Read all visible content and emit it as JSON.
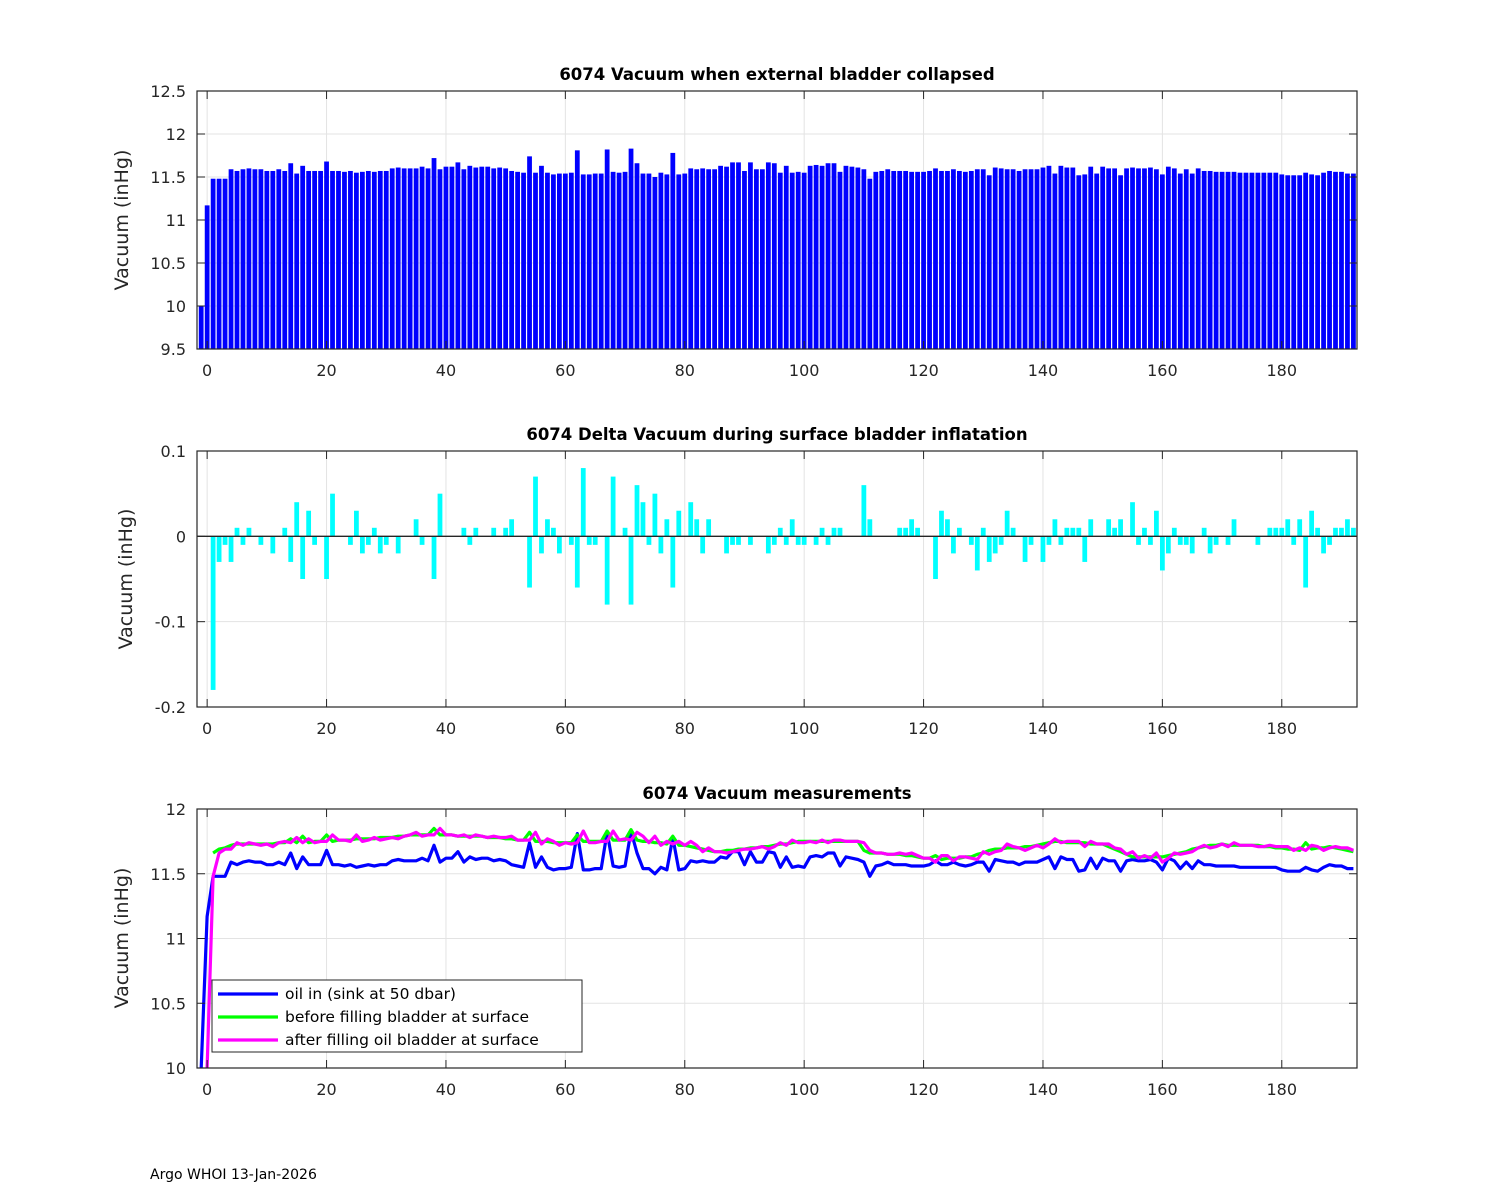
{
  "footer": "Argo WHOI 13-Jan-2026",
  "chart_data": [
    {
      "type": "bar",
      "title": "6074 Vacuum when external bladder collapsed",
      "xlabel": "",
      "ylabel": "Vacuum (inHg)",
      "x_range": [
        -1,
        192
      ],
      "xlim": [
        -1.7,
        192.6
      ],
      "ylim": [
        9.5,
        12.5
      ],
      "xticks": [
        0,
        20,
        40,
        60,
        80,
        100,
        120,
        140,
        160,
        180
      ],
      "xtick_labels": [
        "0",
        "20",
        "40",
        "60",
        "80",
        "100",
        "120",
        "140",
        "160",
        "180"
      ],
      "yticks": [
        9.5,
        10,
        10.5,
        11,
        11.5,
        12,
        12.5
      ],
      "ytick_labels": [
        "9.5",
        "10",
        "10.5",
        "11",
        "11.5",
        "12",
        "12.5"
      ],
      "grid": true,
      "color": "#0000ff",
      "values": [
        10.0,
        11.17,
        11.48,
        11.48,
        11.48,
        11.59,
        11.57,
        11.59,
        11.6,
        11.59,
        11.59,
        11.57,
        11.57,
        11.59,
        11.57,
        11.66,
        11.54,
        11.63,
        11.57,
        11.57,
        11.57,
        11.68,
        11.57,
        11.57,
        11.56,
        11.57,
        11.55,
        11.56,
        11.57,
        11.56,
        11.57,
        11.57,
        11.6,
        11.61,
        11.6,
        11.6,
        11.6,
        11.62,
        11.6,
        11.72,
        11.59,
        11.62,
        11.62,
        11.67,
        11.59,
        11.63,
        11.61,
        11.62,
        11.62,
        11.6,
        11.61,
        11.6,
        11.57,
        11.56,
        11.55,
        11.74,
        11.55,
        11.63,
        11.55,
        11.53,
        11.54,
        11.54,
        11.55,
        11.81,
        11.53,
        11.53,
        11.54,
        11.54,
        11.82,
        11.56,
        11.55,
        11.56,
        11.83,
        11.66,
        11.54,
        11.54,
        11.5,
        11.55,
        11.53,
        11.78,
        11.53,
        11.54,
        11.6,
        11.59,
        11.6,
        11.59,
        11.59,
        11.63,
        11.62,
        11.67,
        11.67,
        11.57,
        11.67,
        11.59,
        11.59,
        11.67,
        11.66,
        11.55,
        11.63,
        11.55,
        11.56,
        11.55,
        11.63,
        11.64,
        11.63,
        11.66,
        11.66,
        11.56,
        11.63,
        11.62,
        11.61,
        11.59,
        11.48,
        11.56,
        11.57,
        11.59,
        11.57,
        11.57,
        11.57,
        11.56,
        11.56,
        11.56,
        11.57,
        11.6,
        11.57,
        11.57,
        11.59,
        11.57,
        11.56,
        11.57,
        11.59,
        11.59,
        11.52,
        11.61,
        11.6,
        11.59,
        11.59,
        11.57,
        11.59,
        11.59,
        11.59,
        11.61,
        11.63,
        11.54,
        11.63,
        11.61,
        11.61,
        11.52,
        11.53,
        11.62,
        11.54,
        11.62,
        11.6,
        11.6,
        11.52,
        11.6,
        11.61,
        11.6,
        11.6,
        11.61,
        11.59,
        11.53,
        11.62,
        11.6,
        11.54,
        11.59,
        11.54,
        11.6,
        11.57,
        11.57,
        11.56,
        11.56,
        11.56,
        11.56,
        11.55,
        11.55,
        11.55,
        11.55,
        11.55,
        11.55,
        11.55,
        11.53,
        11.52,
        11.52,
        11.52,
        11.55,
        11.53,
        11.52,
        11.55,
        11.57,
        11.56,
        11.56,
        11.54,
        11.54
      ]
    },
    {
      "type": "bar",
      "title": "6074 Delta Vacuum during surface bladder inflatation",
      "xlabel": "",
      "ylabel": "Vacuum (inHg)",
      "x_range": [
        -1,
        192
      ],
      "xlim": [
        -1.7,
        192.6
      ],
      "ylim": [
        -0.2,
        0.1
      ],
      "xticks": [
        0,
        20,
        40,
        60,
        80,
        100,
        120,
        140,
        160,
        180
      ],
      "xtick_labels": [
        "0",
        "20",
        "40",
        "60",
        "80",
        "100",
        "120",
        "140",
        "160",
        "180"
      ],
      "yticks": [
        -0.2,
        -0.1,
        0,
        0.1
      ],
      "ytick_labels": [
        "-0.2",
        "-0.1",
        "0",
        "0.1"
      ],
      "grid": true,
      "color": "#00ffff",
      "values": [
        null,
        null,
        -0.18,
        -0.03,
        -0.01,
        -0.03,
        0.01,
        -0.01,
        0.01,
        0,
        -0.01,
        0,
        -0.02,
        0,
        0.01,
        -0.03,
        0.04,
        -0.05,
        0.03,
        -0.01,
        0,
        -0.05,
        0.05,
        0,
        0,
        -0.01,
        0.03,
        -0.02,
        -0.01,
        0.01,
        -0.02,
        -0.01,
        0,
        -0.02,
        0,
        0,
        0.02,
        -0.01,
        0,
        -0.05,
        0.05,
        0,
        0,
        0,
        0.01,
        -0.01,
        0.01,
        0,
        0,
        0.01,
        0,
        0.01,
        0.02,
        0,
        0,
        -0.06,
        0.07,
        -0.02,
        0.02,
        0.01,
        -0.02,
        0,
        -0.01,
        -0.06,
        0.08,
        -0.01,
        -0.01,
        0,
        -0.08,
        0.07,
        0,
        0.01,
        -0.08,
        0.06,
        0.04,
        -0.01,
        0.05,
        -0.02,
        0.02,
        -0.06,
        0.03,
        0,
        0.04,
        0.02,
        -0.02,
        0.02,
        0,
        0,
        -0.02,
        -0.01,
        -0.01,
        0,
        -0.01,
        0,
        0,
        -0.02,
        -0.01,
        0.01,
        -0.01,
        0.02,
        -0.01,
        -0.01,
        0,
        -0.01,
        0.01,
        -0.01,
        0.01,
        0.01,
        0,
        0,
        0,
        0.06,
        0.02,
        0,
        0,
        0,
        0,
        0.01,
        0.01,
        0.02,
        0.01,
        0,
        0,
        -0.05,
        0.03,
        0.02,
        -0.02,
        0.01,
        0,
        -0.01,
        -0.04,
        0.01,
        -0.03,
        -0.02,
        -0.01,
        0.03,
        0.01,
        0,
        -0.03,
        -0.01,
        0,
        -0.03,
        -0.01,
        0.02,
        -0.01,
        0.01,
        0.01,
        0.01,
        -0.03,
        0.02,
        0,
        0,
        0.02,
        0.01,
        0.02,
        0,
        0.04,
        -0.01,
        0.01,
        -0.01,
        0.03,
        -0.04,
        -0.02,
        0.01,
        -0.01,
        -0.01,
        -0.02,
        0,
        0.01,
        -0.02,
        -0.01,
        0,
        -0.01,
        0.02,
        0,
        0,
        0,
        -0.01,
        0,
        0.01,
        0.01,
        0.01,
        0.02,
        -0.01,
        0.02,
        -0.06,
        0.03,
        0.01,
        -0.02,
        -0.01,
        0.01,
        0.01,
        0.02,
        0.01
      ]
    },
    {
      "type": "line",
      "title": "6074 Vacuum measurements",
      "xlabel": "",
      "ylabel": "Vacuum (inHg)",
      "x_range": [
        -1,
        192
      ],
      "xlim": [
        -1.7,
        192.6
      ],
      "ylim": [
        10,
        12
      ],
      "xticks": [
        0,
        20,
        40,
        60,
        80,
        100,
        120,
        140,
        160,
        180
      ],
      "xtick_labels": [
        "0",
        "20",
        "40",
        "60",
        "80",
        "100",
        "120",
        "140",
        "160",
        "180"
      ],
      "yticks": [
        10,
        10.5,
        11,
        11.5,
        12
      ],
      "ytick_labels": [
        "10",
        "10.5",
        "11",
        "11.5",
        "12"
      ],
      "grid": true,
      "legend_position": "bottom-left",
      "series": [
        {
          "name": "oil in (sink at 50 dbar)",
          "color": "#0000ff",
          "values": [
            10.0,
            11.17,
            11.48,
            11.48,
            11.48,
            11.59,
            11.57,
            11.59,
            11.6,
            11.59,
            11.59,
            11.57,
            11.57,
            11.59,
            11.57,
            11.66,
            11.54,
            11.63,
            11.57,
            11.57,
            11.57,
            11.68,
            11.57,
            11.57,
            11.56,
            11.57,
            11.55,
            11.56,
            11.57,
            11.56,
            11.57,
            11.57,
            11.6,
            11.61,
            11.6,
            11.6,
            11.6,
            11.62,
            11.6,
            11.72,
            11.59,
            11.62,
            11.62,
            11.67,
            11.59,
            11.63,
            11.61,
            11.62,
            11.62,
            11.6,
            11.61,
            11.6,
            11.57,
            11.56,
            11.55,
            11.74,
            11.55,
            11.63,
            11.55,
            11.53,
            11.54,
            11.54,
            11.55,
            11.81,
            11.53,
            11.53,
            11.54,
            11.54,
            11.82,
            11.56,
            11.55,
            11.56,
            11.83,
            11.66,
            11.54,
            11.54,
            11.5,
            11.55,
            11.53,
            11.78,
            11.53,
            11.54,
            11.6,
            11.59,
            11.6,
            11.59,
            11.59,
            11.63,
            11.62,
            11.67,
            11.67,
            11.57,
            11.67,
            11.59,
            11.59,
            11.67,
            11.66,
            11.55,
            11.63,
            11.55,
            11.56,
            11.55,
            11.63,
            11.64,
            11.63,
            11.66,
            11.66,
            11.56,
            11.63,
            11.62,
            11.61,
            11.59,
            11.48,
            11.56,
            11.57,
            11.59,
            11.57,
            11.57,
            11.57,
            11.56,
            11.56,
            11.56,
            11.57,
            11.6,
            11.57,
            11.57,
            11.59,
            11.57,
            11.56,
            11.57,
            11.59,
            11.59,
            11.52,
            11.61,
            11.6,
            11.59,
            11.59,
            11.57,
            11.59,
            11.59,
            11.59,
            11.61,
            11.63,
            11.54,
            11.63,
            11.61,
            11.61,
            11.52,
            11.53,
            11.62,
            11.54,
            11.62,
            11.6,
            11.6,
            11.52,
            11.6,
            11.61,
            11.6,
            11.6,
            11.61,
            11.59,
            11.53,
            11.62,
            11.6,
            11.54,
            11.59,
            11.54,
            11.6,
            11.57,
            11.57,
            11.56,
            11.56,
            11.56,
            11.56,
            11.55,
            11.55,
            11.55,
            11.55,
            11.55,
            11.55,
            11.55,
            11.53,
            11.52,
            11.52,
            11.52,
            11.55,
            11.53,
            11.52,
            11.55,
            11.57,
            11.56,
            11.56,
            11.54,
            11.54
          ]
        },
        {
          "name": "before filling bladder at surface",
          "color": "#00ff00",
          "values": [
            null,
            null,
            11.66,
            11.69,
            11.7,
            11.72,
            11.73,
            11.73,
            11.73,
            11.73,
            11.73,
            11.73,
            11.73,
            11.74,
            11.74,
            11.77,
            11.74,
            11.79,
            11.74,
            11.75,
            11.75,
            11.8,
            11.75,
            11.76,
            11.76,
            11.76,
            11.77,
            11.77,
            11.77,
            11.77,
            11.78,
            11.78,
            11.78,
            11.79,
            11.79,
            11.8,
            11.8,
            11.8,
            11.8,
            11.85,
            11.8,
            11.8,
            11.8,
            11.79,
            11.79,
            11.79,
            11.79,
            11.79,
            11.78,
            11.78,
            11.78,
            11.77,
            11.77,
            11.76,
            11.76,
            11.82,
            11.75,
            11.75,
            11.75,
            11.74,
            11.74,
            11.74,
            11.74,
            11.8,
            11.75,
            11.75,
            11.75,
            11.75,
            11.83,
            11.76,
            11.76,
            11.76,
            11.84,
            11.76,
            11.75,
            11.75,
            11.74,
            11.74,
            11.73,
            11.79,
            11.72,
            11.72,
            11.71,
            11.7,
            11.69,
            11.68,
            11.67,
            11.67,
            11.68,
            11.68,
            11.69,
            11.69,
            11.7,
            11.7,
            11.71,
            11.71,
            11.72,
            11.73,
            11.73,
            11.74,
            11.75,
            11.75,
            11.75,
            11.75,
            11.75,
            11.75,
            11.75,
            11.75,
            11.75,
            11.75,
            11.75,
            11.68,
            11.66,
            11.66,
            11.66,
            11.65,
            11.65,
            11.65,
            11.64,
            11.64,
            11.63,
            11.62,
            11.62,
            11.64,
            11.61,
            11.62,
            11.62,
            11.62,
            11.63,
            11.63,
            11.65,
            11.66,
            11.68,
            11.69,
            11.69,
            11.7,
            11.7,
            11.7,
            11.71,
            11.71,
            11.72,
            11.73,
            11.74,
            11.75,
            11.75,
            11.74,
            11.74,
            11.74,
            11.74,
            11.73,
            11.73,
            11.73,
            11.71,
            11.69,
            11.67,
            11.65,
            11.63,
            11.63,
            11.63,
            11.63,
            11.63,
            11.63,
            11.64,
            11.65,
            11.66,
            11.67,
            11.69,
            11.7,
            11.71,
            11.72,
            11.72,
            11.73,
            11.72,
            11.72,
            11.72,
            11.72,
            11.72,
            11.72,
            11.71,
            11.71,
            11.7,
            11.7,
            11.69,
            11.69,
            11.68,
            11.74,
            11.69,
            11.7,
            11.7,
            11.71,
            11.7,
            11.69,
            11.68,
            11.67
          ]
        },
        {
          "name": "after filling oil bladder at surface",
          "color": "#ff00ff",
          "values": [
            null,
            10.0,
            11.48,
            11.66,
            11.69,
            11.69,
            11.74,
            11.72,
            11.74,
            11.73,
            11.72,
            11.73,
            11.71,
            11.74,
            11.75,
            11.74,
            11.78,
            11.74,
            11.77,
            11.74,
            11.75,
            11.75,
            11.8,
            11.76,
            11.76,
            11.75,
            11.8,
            11.75,
            11.76,
            11.78,
            11.76,
            11.77,
            11.78,
            11.77,
            11.79,
            11.8,
            11.82,
            11.79,
            11.8,
            11.8,
            11.85,
            11.8,
            11.8,
            11.79,
            11.8,
            11.78,
            11.8,
            11.79,
            11.78,
            11.79,
            11.78,
            11.78,
            11.79,
            11.76,
            11.76,
            11.76,
            11.82,
            11.73,
            11.77,
            11.75,
            11.72,
            11.74,
            11.73,
            11.74,
            11.83,
            11.74,
            11.74,
            11.75,
            11.75,
            11.83,
            11.76,
            11.77,
            11.76,
            11.82,
            11.79,
            11.74,
            11.79,
            11.72,
            11.75,
            11.73,
            11.75,
            11.72,
            11.75,
            11.72,
            11.67,
            11.7,
            11.67,
            11.67,
            11.66,
            11.67,
            11.68,
            11.69,
            11.69,
            11.7,
            11.71,
            11.69,
            11.71,
            11.74,
            11.72,
            11.76,
            11.74,
            11.74,
            11.75,
            11.74,
            11.76,
            11.74,
            11.76,
            11.76,
            11.75,
            11.75,
            11.75,
            11.74,
            11.68,
            11.66,
            11.66,
            11.65,
            11.65,
            11.66,
            11.65,
            11.66,
            11.64,
            11.62,
            11.62,
            11.59,
            11.64,
            11.64,
            11.6,
            11.63,
            11.63,
            11.62,
            11.61,
            11.67,
            11.65,
            11.67,
            11.68,
            11.73,
            11.71,
            11.7,
            11.68,
            11.7,
            11.72,
            11.7,
            11.73,
            11.77,
            11.74,
            11.75,
            11.75,
            11.75,
            11.71,
            11.75,
            11.73,
            11.73,
            11.73,
            11.7,
            11.69,
            11.65,
            11.67,
            11.62,
            11.64,
            11.62,
            11.66,
            11.59,
            11.62,
            11.66,
            11.65,
            11.66,
            11.67,
            11.7,
            11.72,
            11.7,
            11.71,
            11.73,
            11.71,
            11.74,
            11.72,
            11.72,
            11.72,
            11.71,
            11.71,
            11.72,
            11.71,
            11.71,
            11.71,
            11.68,
            11.7,
            11.68,
            11.72,
            11.71,
            11.68,
            11.7,
            11.71,
            11.7,
            11.7,
            11.68
          ]
        }
      ]
    }
  ]
}
